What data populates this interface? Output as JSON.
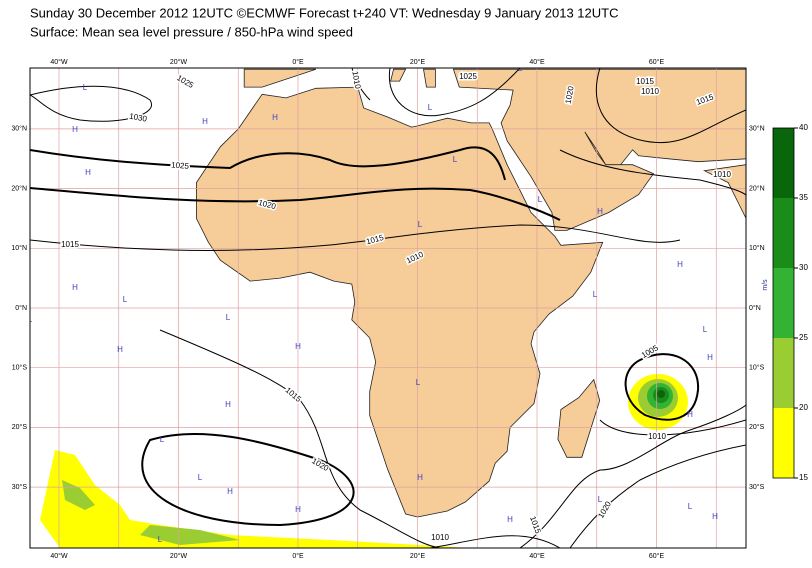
{
  "header": {
    "title": "Sunday 30 December 2012 12UTC ©ECMWF Forecast t+240 VT: Wednesday 9 January 2013 12UTC",
    "subtitle": "Surface: Mean sea level pressure / 850-hPa wind speed"
  },
  "map": {
    "lon_labels": [
      "40°W",
      "20°W",
      "0°E",
      "20°E",
      "40°E",
      "60°E"
    ],
    "lat_labels": [
      "30°N",
      "20°N",
      "10°N",
      "0°N",
      "10°S",
      "20°S",
      "30°S"
    ],
    "isobar_labels": [
      "1025",
      "1030",
      "1025",
      "1020",
      "1015",
      "1015",
      "1010",
      "1015",
      "1020",
      "1010",
      "1015",
      "1020",
      "1005",
      "1010",
      "1025",
      "1020",
      "1015",
      "1010",
      "1015",
      "1010",
      "1010"
    ],
    "pressure_centres": [
      "H",
      "L",
      "H",
      "H",
      "L",
      "H",
      "H",
      "L",
      "L",
      "H",
      "L",
      "L",
      "H",
      "L",
      "H",
      "L",
      "H",
      "L",
      "H",
      "H",
      "L",
      "H",
      "L",
      "L",
      "H",
      "L",
      "L",
      "H",
      "H",
      "L",
      "L",
      "H",
      "L",
      "H"
    ]
  },
  "colorbar": {
    "ticks": [
      15,
      20,
      25,
      30,
      35,
      40
    ],
    "unit": "m/s",
    "colors": [
      "#ffff00",
      "#9acd32",
      "#33b233",
      "#1a8c1a",
      "#0a660a"
    ]
  }
}
